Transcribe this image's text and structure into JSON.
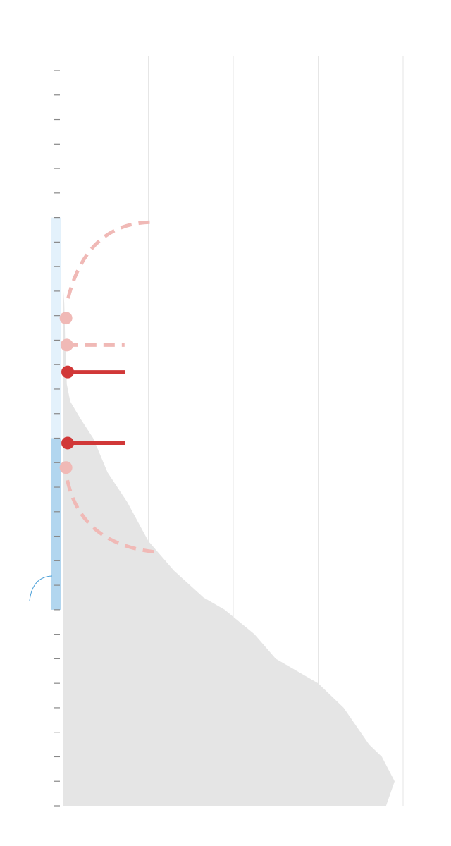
{
  "chart_data": {
    "type": "area",
    "title": "",
    "xlabel": "",
    "ylabel": "",
    "orientation": "vertical",
    "grid": true,
    "legend": "none",
    "x_gridlines": [
      0,
      1,
      2,
      3,
      4
    ],
    "xlim": [
      0,
      4
    ],
    "ylim": [
      0,
      30
    ],
    "colors": {
      "area": "#e5e5e5",
      "grid": "#e6e6e6",
      "band_light": "#e3f1fb",
      "band_dark": "#b2d6ef",
      "marker_strong": "#d13838",
      "marker_light": "#f0b9b6",
      "tick": "#888888",
      "arc": "#4a9fd8"
    },
    "area_series": {
      "y": [
        0,
        6,
        9,
        9.5,
        11,
        12.8,
        13.5,
        14.2,
        15,
        16.4,
        17.6,
        19.2,
        20.4,
        21.5,
        22,
        23,
        24,
        24.3,
        25,
        26,
        27.5,
        28,
        29,
        30
      ],
      "x": [
        0,
        0,
        0,
        0.01,
        0.02,
        0.04,
        0.08,
        0.2,
        0.35,
        0.52,
        0.75,
        1.0,
        1.3,
        1.65,
        1.9,
        2.25,
        2.5,
        2.65,
        3.0,
        3.3,
        3.6,
        3.75,
        3.9,
        3.8
      ]
    },
    "bands": [
      {
        "kind": "light",
        "y_from": 6,
        "y_to": 15
      },
      {
        "kind": "dark",
        "y_from": 15,
        "y_to": 22
      }
    ],
    "markers": [
      {
        "kind": "light",
        "x": 0.03,
        "y": 10.1,
        "line": "dashed-arc",
        "direction": "up"
      },
      {
        "kind": "light",
        "x": 0.04,
        "y": 11.2,
        "line": "dashed",
        "x_end": 0.72
      },
      {
        "kind": "strong",
        "x": 0.05,
        "y": 12.3,
        "line": "solid",
        "x_end": 0.73
      },
      {
        "kind": "strong",
        "x": 0.05,
        "y": 15.2,
        "line": "solid",
        "x_end": 0.73
      },
      {
        "kind": "light",
        "x": 0.03,
        "y": 16.2,
        "line": "dashed-arc",
        "direction": "down"
      }
    ]
  }
}
